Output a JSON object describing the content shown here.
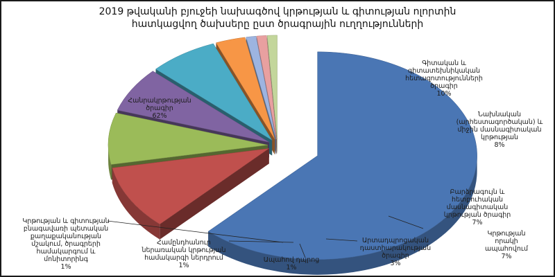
{
  "chart_data": {
    "type": "pie",
    "title_lines": [
      "2019 թվականի բյուջեի նախագծով կրթության և գիտության ոլորտին",
      "հատկացվող ծախսերը ըստ ծրագրային ուղղությունների"
    ],
    "unit": "%",
    "slices": [
      {
        "label_lines": [
          "Հանրակրթության",
          "ծրագիր"
        ],
        "value": 62,
        "value_label": "62%",
        "color": "#4a76b4"
      },
      {
        "label_lines": [
          "Գիտական և",
          "գիտատեխնիկական",
          "հետազոտությունների",
          "ծրագիր"
        ],
        "value": 10,
        "value_label": "10%",
        "color": "#c0504d"
      },
      {
        "label_lines": [
          "Նախնական",
          "(արհեստագործական) և",
          "միջին մասնագիտական",
          "կրթության"
        ],
        "value": 8,
        "value_label": "8%",
        "color": "#9bbb59"
      },
      {
        "label_lines": [
          "Բարձրագույն և",
          "հետբուհական",
          "մասնագիտական",
          "կրթության ծրագիր"
        ],
        "value": 7,
        "value_label": "7%",
        "color": "#8064a2"
      },
      {
        "label_lines": [
          "Կրթության",
          "որակի",
          "ապահովում"
        ],
        "value": 7,
        "value_label": "7%",
        "color": "#4bacc6"
      },
      {
        "label_lines": [
          "Արտադպրոցական",
          "դաստիարակության",
          "ծրագիր"
        ],
        "value": 3,
        "value_label": "3%",
        "color": "#f79646"
      },
      {
        "label_lines": [
          "Ապահով դպրոց"
        ],
        "value": 1,
        "value_label": "1%",
        "color": "#9db4e0"
      },
      {
        "label_lines": [
          "Համընդհանուր",
          "ներառական կրթության",
          "համակարգի ներդրում"
        ],
        "value": 1,
        "value_label": "1%",
        "color": "#e8a0a0"
      },
      {
        "label_lines": [
          "Կրթության և գիտության",
          "բնագավառի պետական",
          "քաղաքականության",
          "մշակում, ծրագրերի",
          "համակարգում և",
          "մոնիտորինգ"
        ],
        "value": 1,
        "value_label": "1%",
        "color": "#c3d69b"
      }
    ]
  }
}
